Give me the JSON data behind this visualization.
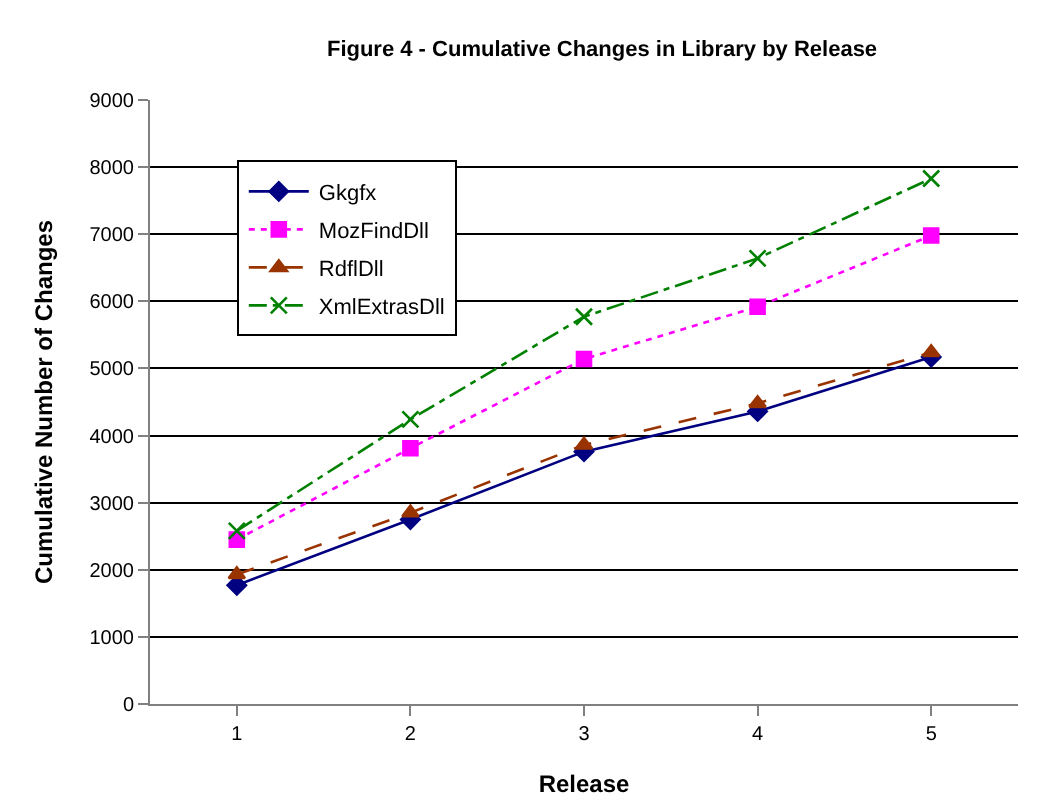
{
  "chart_data": {
    "type": "line",
    "title": "Figure 4 - Cumulative Changes in Library by Release",
    "xlabel": "Release",
    "ylabel": "Cumulative Number of Changes",
    "categories": [
      "1",
      "2",
      "3",
      "4",
      "5"
    ],
    "series": [
      {
        "name": "Gkgfx",
        "color": "#000080",
        "marker": "diamond",
        "line_style": "solid",
        "values": [
          1770,
          2750,
          3760,
          4360,
          5170
        ]
      },
      {
        "name": "MozFindDll",
        "color": "#ff00ff",
        "marker": "square",
        "line_style": "dotted",
        "values": [
          2450,
          3810,
          5140,
          5920,
          6980
        ]
      },
      {
        "name": "RdflDll",
        "color": "#993300",
        "marker": "triangle",
        "line_style": "dashed",
        "values": [
          1930,
          2850,
          3860,
          4480,
          5240
        ]
      },
      {
        "name": "XmlExtrasDll",
        "color": "#008000",
        "marker": "cross",
        "line_style": "dashdot",
        "values": [
          2580,
          4240,
          5770,
          6640,
          7830
        ]
      }
    ],
    "ylim": [
      0,
      9000
    ],
    "yticks": [
      0,
      1000,
      2000,
      3000,
      4000,
      5000,
      6000,
      7000,
      8000,
      9000
    ],
    "grid": "y",
    "legend": "top left"
  }
}
